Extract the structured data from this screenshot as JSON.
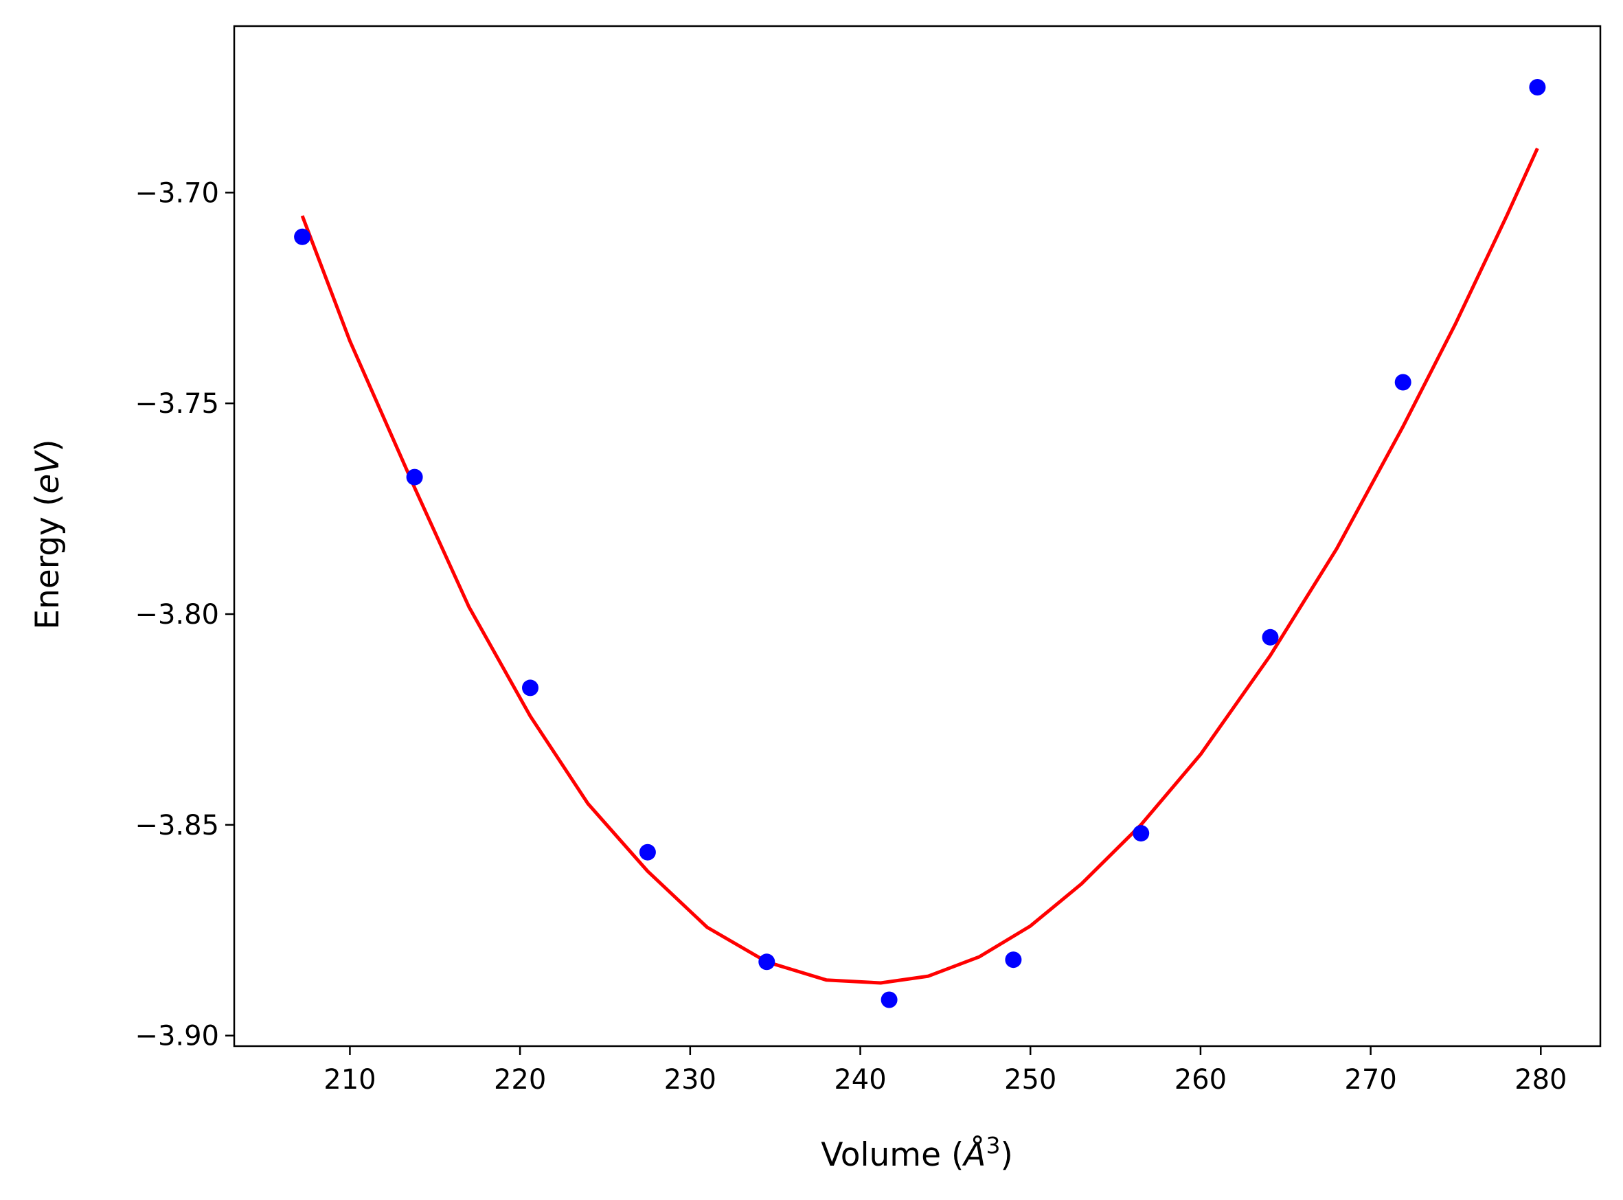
{
  "chart_data": {
    "type": "scatter",
    "title": "",
    "xlabel": {
      "prefix": "Volume (",
      "symbol": "Å",
      "superscript": "3",
      "suffix": ")"
    },
    "ylabel": {
      "prefix": "Energy (",
      "unit": "eV",
      "suffix": ")"
    },
    "xlim": [
      203.2,
      283.5
    ],
    "ylim": [
      -3.9025,
      -3.6605
    ],
    "x_ticks": [
      210,
      220,
      230,
      240,
      250,
      260,
      270,
      280
    ],
    "x_tick_labels": [
      "210",
      "220",
      "230",
      "240",
      "250",
      "260",
      "270",
      "280"
    ],
    "y_ticks": [
      -3.9,
      -3.85,
      -3.8,
      -3.75,
      -3.7
    ],
    "y_tick_labels": [
      "−3.90",
      "−3.85",
      "−3.80",
      "−3.75",
      "−3.70"
    ],
    "grid": false,
    "legend": "none",
    "series": [
      {
        "kind": "points",
        "color": "#0000ff",
        "x": [
          207.2,
          213.8,
          220.6,
          227.5,
          234.5,
          241.7,
          249.0,
          256.5,
          264.1,
          271.9,
          279.8
        ],
        "y": [
          -3.7105,
          -3.7675,
          -3.8175,
          -3.8565,
          -3.8825,
          -3.8915,
          -3.882,
          -3.852,
          -3.8055,
          -3.745,
          -3.675
        ]
      },
      {
        "kind": "fit-curve",
        "color": "#ff0000",
        "x": [
          207.2,
          210.0,
          213.8,
          217.0,
          220.6,
          224.0,
          227.5,
          231.0,
          234.5,
          238.0,
          241.2,
          244.0,
          247.0,
          250.0,
          253.0,
          256.5,
          260.0,
          264.1,
          268.0,
          271.9,
          275.0,
          278.0,
          279.8
        ],
        "y": [
          -3.7055,
          -3.7352,
          -3.77,
          -3.7983,
          -3.8242,
          -3.845,
          -3.861,
          -3.8743,
          -3.8825,
          -3.8868,
          -3.8875,
          -3.8859,
          -3.8813,
          -3.874,
          -3.864,
          -3.85,
          -3.8333,
          -3.8098,
          -3.7845,
          -3.7555,
          -3.731,
          -3.7055,
          -3.6895
        ]
      }
    ]
  }
}
